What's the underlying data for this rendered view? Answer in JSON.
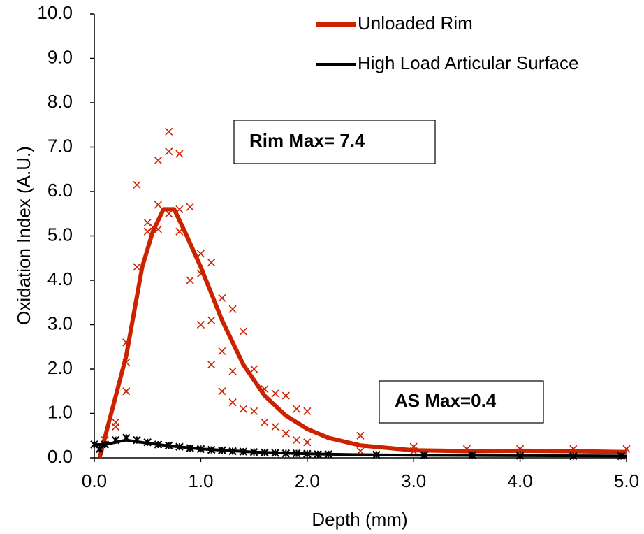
{
  "chart_data": {
    "type": "line",
    "xlabel": "Depth (mm)",
    "ylabel": "Oxidation Index (A.U.)",
    "xlim": [
      0,
      5
    ],
    "ylim": [
      0,
      10
    ],
    "xticks": [
      {
        "value": 0,
        "label": "0.0"
      },
      {
        "value": 1,
        "label": "1.0"
      },
      {
        "value": 2,
        "label": "2.0"
      },
      {
        "value": 3,
        "label": "3.0"
      },
      {
        "value": 4,
        "label": "4.0"
      },
      {
        "value": 5,
        "label": "5.0"
      }
    ],
    "yticks": [
      {
        "value": 0,
        "label": "0.0"
      },
      {
        "value": 1,
        "label": "1.0"
      },
      {
        "value": 2,
        "label": "2.0"
      },
      {
        "value": 3,
        "label": "3.0"
      },
      {
        "value": 4,
        "label": "4.0"
      },
      {
        "value": 5,
        "label": "5.0"
      },
      {
        "value": 6,
        "label": "6.0"
      },
      {
        "value": 7,
        "label": "7.0"
      },
      {
        "value": 8,
        "label": "8.0"
      },
      {
        "value": 9,
        "label": "9.0"
      },
      {
        "value": 10,
        "label": "10.0"
      }
    ],
    "grid": false,
    "legend": "upper right",
    "annotations": [
      {
        "text": "Rim Max= 7.4"
      },
      {
        "text": "AS Max=0.4"
      }
    ],
    "series": [
      {
        "name": "Unloaded Rim",
        "color": "#cc2200",
        "x": [
          0.05,
          0.3,
          0.45,
          0.55,
          0.65,
          0.75,
          0.85,
          1.0,
          1.2,
          1.4,
          1.6,
          1.8,
          2.0,
          2.2,
          2.5,
          3.0,
          3.5,
          4.0,
          4.5,
          5.0
        ],
        "values": [
          0,
          2.3,
          4.3,
          5.1,
          5.6,
          5.6,
          5.1,
          4.3,
          3.1,
          2.1,
          1.4,
          0.95,
          0.65,
          0.45,
          0.28,
          0.17,
          0.15,
          0.16,
          0.15,
          0.13
        ],
        "scatter_x": [
          0,
          0.1,
          0.2,
          0.2,
          0.3,
          0.3,
          0.3,
          0.4,
          0.4,
          0.5,
          0.5,
          0.55,
          0.6,
          0.6,
          0.6,
          0.7,
          0.7,
          0.7,
          0.8,
          0.8,
          0.8,
          0.9,
          0.9,
          1.0,
          1.0,
          1.0,
          1.1,
          1.1,
          1.1,
          1.2,
          1.2,
          1.2,
          1.3,
          1.3,
          1.3,
          1.4,
          1.4,
          1.5,
          1.5,
          1.6,
          1.6,
          1.7,
          1.7,
          1.8,
          1.8,
          1.9,
          1.9,
          2.0,
          2.0,
          2.5,
          2.5,
          3.0,
          3.0,
          3.5,
          4.0,
          4.5,
          5.0
        ],
        "scatter_y": [
          0.3,
          0.4,
          0.8,
          0.7,
          2.6,
          2.15,
          1.5,
          6.15,
          4.3,
          5.3,
          5.1,
          5.2,
          6.7,
          5.7,
          5.15,
          7.35,
          6.9,
          5.5,
          6.85,
          5.6,
          5.1,
          5.65,
          4.0,
          4.6,
          3.0,
          4.15,
          4.4,
          3.1,
          2.1,
          3.6,
          2.4,
          1.5,
          3.35,
          1.95,
          1.25,
          2.85,
          1.1,
          2.0,
          1.05,
          1.55,
          0.8,
          1.45,
          0.7,
          1.4,
          0.55,
          1.1,
          0.4,
          1.05,
          0.35,
          0.5,
          0.15,
          0.25,
          0.15,
          0.2,
          0.2,
          0.2,
          0.2
        ]
      },
      {
        "name": "High Load Articular Surface",
        "color": "#000000",
        "x": [
          0,
          0.1,
          0.3,
          0.5,
          0.7,
          1.0,
          1.5,
          2.0,
          2.5,
          3.0,
          4.0,
          5.0
        ],
        "values": [
          0.3,
          0.3,
          0.4,
          0.33,
          0.27,
          0.2,
          0.13,
          0.09,
          0.07,
          0.06,
          0.05,
          0.04
        ],
        "scatter_x": [
          0,
          0.05,
          0.1,
          0.2,
          0.3,
          0.4,
          0.5,
          0.6,
          0.7,
          0.8,
          0.9,
          1.0,
          1.1,
          1.2,
          1.3,
          1.4,
          1.5,
          1.6,
          1.7,
          1.8,
          1.9,
          2.0,
          2.1,
          2.2,
          2.65,
          3.1,
          3.55,
          4.0,
          4.5,
          4.95
        ],
        "scatter_y": [
          0.3,
          0.2,
          0.3,
          0.4,
          0.45,
          0.4,
          0.35,
          0.3,
          0.28,
          0.25,
          0.22,
          0.2,
          0.18,
          0.17,
          0.15,
          0.14,
          0.13,
          0.12,
          0.11,
          0.1,
          0.1,
          0.09,
          0.08,
          0.08,
          0.07,
          0.06,
          0.06,
          0.05,
          0.04,
          0.04
        ]
      }
    ]
  }
}
